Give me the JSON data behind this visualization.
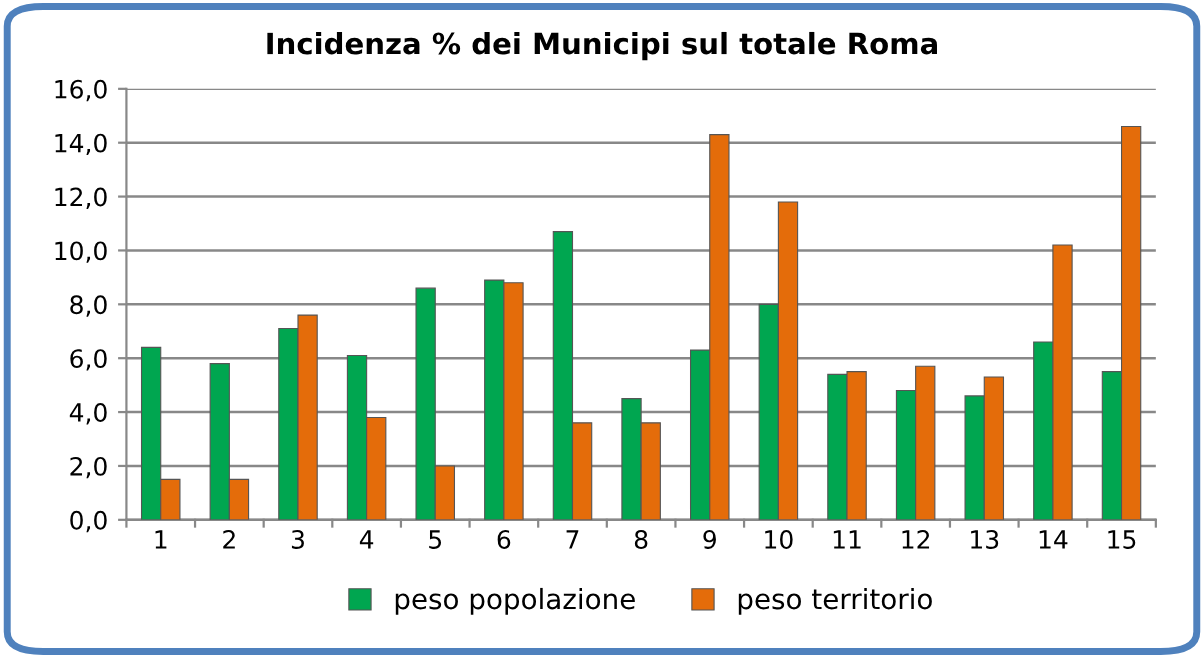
{
  "chart_data": {
    "type": "bar",
    "title": "Incidenza % dei Municipi sul totale Roma",
    "categories": [
      "1",
      "2",
      "3",
      "4",
      "5",
      "6",
      "7",
      "8",
      "9",
      "10",
      "11",
      "12",
      "13",
      "14",
      "15"
    ],
    "series": [
      {
        "name": "peso popolazione",
        "color": "#00a650",
        "values": [
          6.4,
          5.8,
          7.1,
          6.1,
          8.6,
          8.9,
          10.7,
          4.5,
          6.3,
          8.0,
          5.4,
          4.8,
          4.6,
          6.6,
          5.5
        ]
      },
      {
        "name": "peso territorio",
        "color": "#e46c0a",
        "values": [
          1.5,
          1.5,
          7.6,
          3.8,
          2.0,
          8.8,
          3.6,
          3.6,
          14.3,
          11.8,
          5.5,
          5.7,
          5.3,
          10.2,
          14.6
        ]
      }
    ],
    "ylim": [
      0,
      16
    ],
    "yticks": [
      {
        "value": 0,
        "label": "0,0"
      },
      {
        "value": 2,
        "label": "2,0"
      },
      {
        "value": 4,
        "label": "4,0"
      },
      {
        "value": 6,
        "label": "6,0"
      },
      {
        "value": 8,
        "label": "8,0"
      },
      {
        "value": 10,
        "label": "10,0"
      },
      {
        "value": 12,
        "label": "12,0"
      },
      {
        "value": 14,
        "label": "14,0"
      },
      {
        "value": 16,
        "label": "16,0"
      }
    ],
    "grid": "y",
    "legend": "bottom"
  }
}
